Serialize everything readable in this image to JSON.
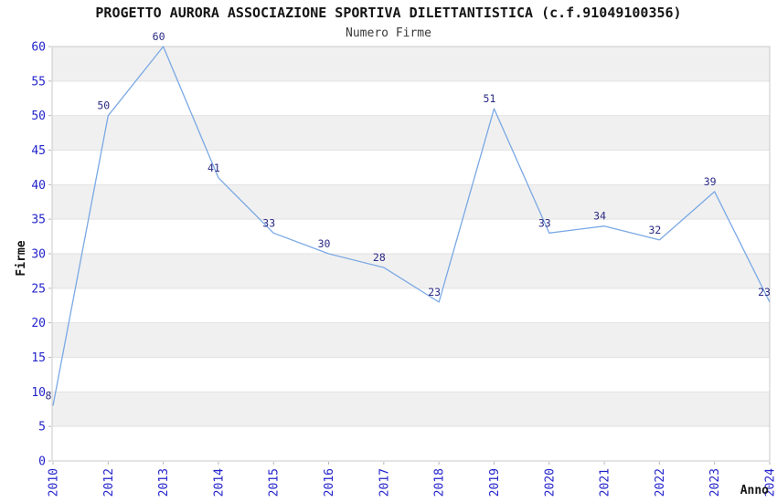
{
  "chart_data": {
    "type": "line",
    "title": "PROGETTO AURORA ASSOCIAZIONE SPORTIVA DILETTANTISTICA (c.f.91049100356)",
    "subtitle": "Numero Firme",
    "xlabel": "Anno",
    "ylabel": "Firme",
    "categories": [
      "2010",
      "2012",
      "2013",
      "2014",
      "2015",
      "2016",
      "2017",
      "2018",
      "2019",
      "2020",
      "2021",
      "2022",
      "2023",
      "2024"
    ],
    "values": [
      8,
      50,
      60,
      41,
      33,
      30,
      28,
      23,
      51,
      33,
      34,
      32,
      39,
      23
    ],
    "point_labels": [
      "8",
      "50",
      "60",
      "41",
      "33",
      "30",
      "28",
      "23",
      "51",
      "33",
      "34",
      "32",
      "39",
      "23"
    ],
    "ylim": [
      0,
      60
    ],
    "ytick_step": 5,
    "yticks": [
      "0",
      "5",
      "10",
      "15",
      "20",
      "25",
      "30",
      "35",
      "40",
      "45",
      "50",
      "55",
      "60"
    ],
    "grid": "horizontal-bands",
    "legend": "none",
    "colors": {
      "line": "#7aa8e4",
      "point_label": "#2a2a85",
      "tick_label": "#2323cc",
      "band": "#f0f0f0",
      "gridline": "#e2e2e2",
      "spine": "#c9c9c9",
      "tick_mark": "#b5b5b5",
      "title": "#141414"
    }
  }
}
